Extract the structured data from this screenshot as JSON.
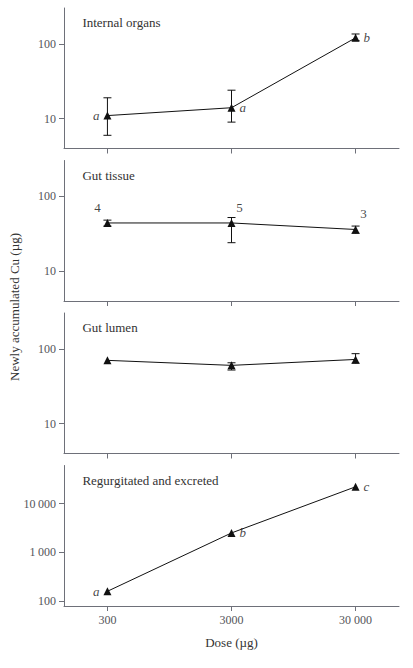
{
  "chart_data": [
    {
      "type": "line",
      "title": "Internal organs",
      "ylabel": "Newly accumulated Cu (µg)",
      "x": [
        300,
        3000,
        30000
      ],
      "values": [
        11,
        14,
        120
      ],
      "yerr_lower": [
        5,
        5,
        10
      ],
      "yerr_upper": [
        8,
        10,
        15
      ],
      "color": "#111111",
      "marker": "triangle",
      "log": true,
      "grid": false,
      "tick_labels": "y",
      "xlim": [
        134.005,
        67161.6
      ],
      "xticks": [
        300,
        3000,
        {
          "value": 30000,
          "label": "30 000"
        }
      ],
      "ylim": [
        4,
        300
      ],
      "yticks": [
        10,
        100
      ],
      "annotations": [
        {
          "text": "a",
          "x": 300,
          "y": 11
        },
        {
          "text": "a",
          "x": 3000,
          "y": 14
        },
        {
          "text": "b",
          "x": 30000,
          "y": 120
        }
      ],
      "counts": []
    },
    {
      "type": "line",
      "title": "Gut tissue",
      "x": [
        300,
        3000,
        30000
      ],
      "values": [
        44,
        44,
        36
      ],
      "yerr_lower": [
        4,
        20,
        4
      ],
      "yerr_upper": [
        4,
        8,
        4
      ],
      "color": "#111111",
      "marker": "triangle",
      "log": true,
      "grid": false,
      "tick_labels": "y",
      "xlim": [
        134.005,
        67161.6
      ],
      "xticks": [
        300,
        3000,
        {
          "value": 30000,
          "label": "30 000"
        }
      ],
      "ylim": [
        4,
        300
      ],
      "yticks": [
        10,
        100
      ],
      "annotations": [],
      "counts": [
        {
          "text": "4",
          "x": 300,
          "y": 44
        },
        {
          "text": "5",
          "x": 3000,
          "y": 44
        },
        {
          "text": "3",
          "x": 30000,
          "y": 36
        }
      ]
    },
    {
      "type": "line",
      "title": "Gut lumen",
      "x": [
        300,
        3000,
        30000
      ],
      "values": [
        70,
        60,
        72
      ],
      "yerr_lower": [
        0,
        8,
        8
      ],
      "yerr_upper": [
        0,
        5,
        14
      ],
      "color": "#111111",
      "marker": "triangle",
      "log": true,
      "grid": false,
      "tick_labels": "y",
      "xlim": [
        134.005,
        67161.6
      ],
      "xticks": [
        300,
        3000,
        {
          "value": 30000,
          "label": "30 000"
        }
      ],
      "ylim": [
        4,
        300
      ],
      "yticks": [
        10,
        100
      ],
      "annotations": [],
      "counts": []
    },
    {
      "type": "line",
      "title": "Regurgitated and excreted",
      "xlabel": "Dose (µg)",
      "x": [
        300,
        3000,
        30000
      ],
      "values": [
        160,
        2500,
        22000
      ],
      "yerr_lower": [
        0,
        0,
        0
      ],
      "yerr_upper": [
        0,
        0,
        0
      ],
      "color": "#111111",
      "marker": "triangle",
      "log": true,
      "grid": false,
      "xlim": [
        134.005,
        67161.6
      ],
      "xticks": [
        300,
        3000,
        {
          "value": 30000,
          "label": "30 000"
        }
      ],
      "ylim": [
        80,
        60000
      ],
      "yticks": [
        100,
        {
          "value": 1000,
          "label": "1 000"
        },
        {
          "value": 10000,
          "label": "10 000"
        }
      ],
      "annotations": [
        {
          "text": "a",
          "x": 300,
          "y": 160
        },
        {
          "text": "b",
          "x": 3000,
          "y": 2500
        },
        {
          "text": "c",
          "x": 30000,
          "y": 22000
        }
      ],
      "counts": []
    }
  ]
}
